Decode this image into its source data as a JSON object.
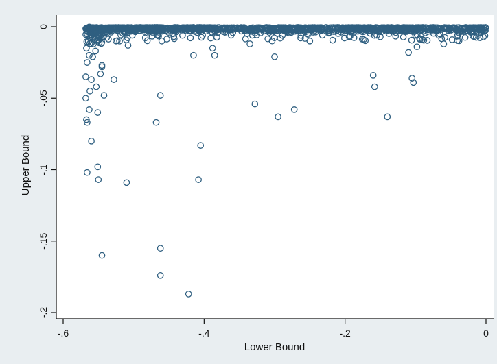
{
  "chart_data": {
    "type": "scatter",
    "title": "",
    "xlabel": "Lower Bound",
    "ylabel": "Upper Bound",
    "xlim": [
      -0.6,
      0
    ],
    "ylim": [
      -0.2,
      0
    ],
    "x_ticks": [
      -0.6,
      -0.4,
      -0.2,
      0
    ],
    "x_tick_labels": [
      "-.6",
      "-.4",
      "-.2",
      "0"
    ],
    "y_ticks": [
      0,
      -0.05,
      -0.1,
      -0.15,
      -0.2
    ],
    "y_tick_labels": [
      "0",
      "-.05",
      "-.1",
      "-.15",
      "-.2"
    ],
    "grid": false,
    "legend": "none",
    "marker": "hollow-circle",
    "colors": {
      "marker": "#2f5f80",
      "background": "#e9eef1",
      "plot_area": "#ffffff",
      "axis": "#111111"
    },
    "series": [
      {
        "points": [
          [
            -0.568,
            -0.05
          ],
          [
            -0.567,
            -0.065
          ],
          [
            -0.566,
            -0.067
          ],
          [
            -0.566,
            -0.102
          ],
          [
            -0.568,
            -0.035
          ],
          [
            -0.566,
            -0.025
          ],
          [
            -0.567,
            -0.015
          ],
          [
            -0.566,
            -0.005
          ],
          [
            -0.562,
            -0.045
          ],
          [
            -0.563,
            -0.058
          ],
          [
            -0.563,
            -0.02
          ],
          [
            -0.56,
            -0.08
          ],
          [
            -0.56,
            -0.037
          ],
          [
            -0.558,
            -0.021
          ],
          [
            -0.557,
            -0.012
          ],
          [
            -0.554,
            -0.017
          ],
          [
            -0.553,
            -0.042
          ],
          [
            -0.551,
            -0.06
          ],
          [
            -0.551,
            -0.098
          ],
          [
            -0.55,
            -0.107
          ],
          [
            -0.55,
            -0.007
          ],
          [
            -0.547,
            -0.033
          ],
          [
            -0.545,
            -0.028
          ],
          [
            -0.545,
            -0.027
          ],
          [
            -0.545,
            -0.16
          ],
          [
            -0.542,
            -0.048
          ],
          [
            -0.528,
            -0.037
          ],
          [
            -0.525,
            -0.01
          ],
          [
            -0.52,
            -0.01
          ],
          [
            -0.51,
            -0.109
          ],
          [
            -0.508,
            -0.013
          ],
          [
            -0.468,
            -0.067
          ],
          [
            -0.462,
            -0.048
          ],
          [
            -0.462,
            -0.155
          ],
          [
            -0.462,
            -0.174
          ],
          [
            -0.46,
            -0.01
          ],
          [
            -0.422,
            -0.187
          ],
          [
            -0.415,
            -0.02
          ],
          [
            -0.408,
            -0.107
          ],
          [
            -0.405,
            -0.083
          ],
          [
            -0.388,
            -0.015
          ],
          [
            -0.385,
            -0.02
          ],
          [
            -0.335,
            -0.012
          ],
          [
            -0.328,
            -0.054
          ],
          [
            -0.3,
            -0.021
          ],
          [
            -0.295,
            -0.063
          ],
          [
            -0.292,
            -0.008
          ],
          [
            -0.272,
            -0.058
          ],
          [
            -0.25,
            -0.01
          ],
          [
            -0.16,
            -0.034
          ],
          [
            -0.158,
            -0.042
          ],
          [
            -0.155,
            -0.006
          ],
          [
            -0.14,
            -0.063
          ],
          [
            -0.11,
            -0.018
          ],
          [
            -0.105,
            -0.036
          ],
          [
            -0.103,
            -0.039
          ],
          [
            -0.1,
            -0.006
          ],
          [
            -0.098,
            -0.014
          ],
          [
            -0.06,
            -0.012
          ],
          [
            -0.04,
            -0.006
          ],
          [
            -0.02,
            -0.003
          ]
        ]
      }
    ]
  }
}
